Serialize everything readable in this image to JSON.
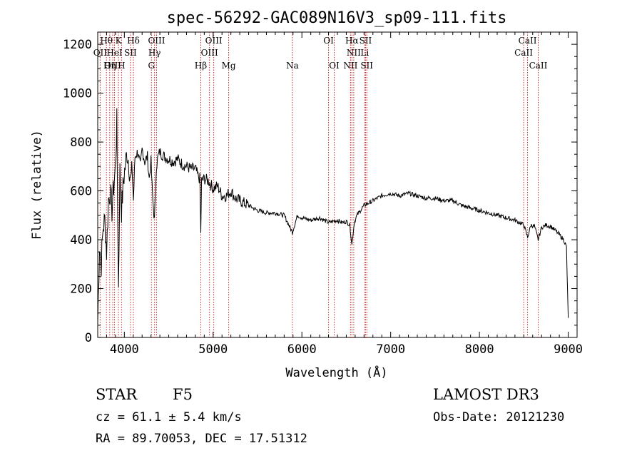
{
  "chart_data": {
    "type": "line",
    "title": "spec-56292-GAC089N16V3_sp09-111.fits",
    "xlabel": "Wavelength (Å)",
    "ylabel": "Flux (relative)",
    "xlim": [
      3700,
      9100
    ],
    "ylim": [
      0,
      1250
    ],
    "xticks": [
      4000,
      5000,
      6000,
      7000,
      8000,
      9000
    ],
    "yticks": [
      0,
      200,
      400,
      600,
      800,
      1000,
      1200
    ],
    "series": [
      {
        "name": "spectrum",
        "x": [
          3700,
          3720,
          3740,
          3760,
          3780,
          3800,
          3820,
          3840,
          3860,
          3880,
          3900,
          3915,
          3934,
          3950,
          3968,
          3990,
          4010,
          4030,
          4050,
          4070,
          4090,
          4102,
          4120,
          4150,
          4180,
          4200,
          4230,
          4260,
          4280,
          4300,
          4320,
          4340,
          4360,
          4380,
          4400,
          4450,
          4500,
          4550,
          4600,
          4650,
          4700,
          4750,
          4800,
          4830,
          4850,
          4861,
          4870,
          4900,
          4950,
          5000,
          5050,
          5100,
          5150,
          5200,
          5250,
          5300,
          5400,
          5500,
          5600,
          5700,
          5800,
          5893,
          5950,
          6000,
          6100,
          6200,
          6300,
          6400,
          6450,
          6500,
          6540,
          6563,
          6590,
          6620,
          6700,
          6800,
          6900,
          7000,
          7100,
          7200,
          7300,
          7400,
          7500,
          7600,
          7700,
          7800,
          7900,
          8000,
          8100,
          8200,
          8300,
          8400,
          8450,
          8500,
          8542,
          8580,
          8620,
          8662,
          8700,
          8750,
          8800,
          8850,
          8900,
          8950,
          8980,
          9000
        ],
        "values": [
          60,
          380,
          300,
          450,
          480,
          350,
          560,
          600,
          520,
          620,
          700,
          880,
          200,
          680,
          520,
          640,
          700,
          760,
          720,
          640,
          680,
          560,
          740,
          760,
          700,
          770,
          720,
          740,
          650,
          720,
          560,
          480,
          700,
          740,
          760,
          740,
          730,
          720,
          730,
          710,
          700,
          690,
          690,
          660,
          650,
          420,
          640,
          650,
          640,
          610,
          620,
          580,
          580,
          600,
          570,
          560,
          540,
          520,
          510,
          510,
          500,
          430,
          500,
          490,
          480,
          490,
          470,
          480,
          470,
          475,
          460,
          380,
          470,
          500,
          540,
          560,
          580,
          590,
          580,
          590,
          580,
          570,
          570,
          560,
          560,
          540,
          530,
          520,
          510,
          500,
          490,
          480,
          470,
          460,
          410,
          460,
          455,
          400,
          450,
          460,
          455,
          440,
          420,
          400,
          370,
          80
        ]
      }
    ],
    "lines": [
      {
        "name": "Hθ",
        "x": 3798,
        "row": 0
      },
      {
        "name": "K",
        "x": 3934,
        "row": 0
      },
      {
        "name": "Hδ",
        "x": 4102,
        "row": 0
      },
      {
        "name": "OIII",
        "x": 4363,
        "row": 0
      },
      {
        "name": "OIII",
        "x": 5007,
        "row": 0
      },
      {
        "name": "OI",
        "x": 6300,
        "row": 0
      },
      {
        "name": "Hα",
        "x": 6563,
        "row": 0
      },
      {
        "name": "SII",
        "x": 6717,
        "row": 0
      },
      {
        "name": "CaII",
        "x": 8542,
        "row": 0
      },
      {
        "name": "OII",
        "x": 3727,
        "row": 1
      },
      {
        "name": "HeI",
        "x": 3889,
        "row": 1
      },
      {
        "name": "SII",
        "x": 4069,
        "row": 1
      },
      {
        "name": "Hγ",
        "x": 4340,
        "row": 1
      },
      {
        "name": "OIII",
        "x": 4959,
        "row": 1
      },
      {
        "name": "NII",
        "x": 6584,
        "row": 1
      },
      {
        "name": "Li",
        "x": 6708,
        "row": 1
      },
      {
        "name": "CaII",
        "x": 8498,
        "row": 1
      },
      {
        "name": "OIII",
        "x": 3869,
        "row": 2
      },
      {
        "name": "Hη",
        "x": 3835,
        "row": 2
      },
      {
        "name": "H",
        "x": 3968,
        "row": 2
      },
      {
        "name": "G",
        "x": 4305,
        "row": 2
      },
      {
        "name": "Hβ",
        "x": 4861,
        "row": 2
      },
      {
        "name": "Mg",
        "x": 5175,
        "row": 2
      },
      {
        "name": "Na",
        "x": 5893,
        "row": 2
      },
      {
        "name": "OI",
        "x": 6364,
        "row": 2
      },
      {
        "name": "NII",
        "x": 6548,
        "row": 2
      },
      {
        "name": "SII",
        "x": 6731,
        "row": 2
      },
      {
        "name": "CaII",
        "x": 8662,
        "row": 2
      }
    ]
  },
  "info": {
    "class": "STAR",
    "subclass": "F5",
    "survey": "LAMOST DR3",
    "cz": "cz = 61.1 ± 5.4 km/s",
    "obs_date": "Obs-Date: 20121230",
    "coords": "RA =  89.70053, DEC =  17.51312"
  },
  "colors": {
    "spectrum": "#000000",
    "line_marker": "#cc2222",
    "axis": "#000000"
  }
}
